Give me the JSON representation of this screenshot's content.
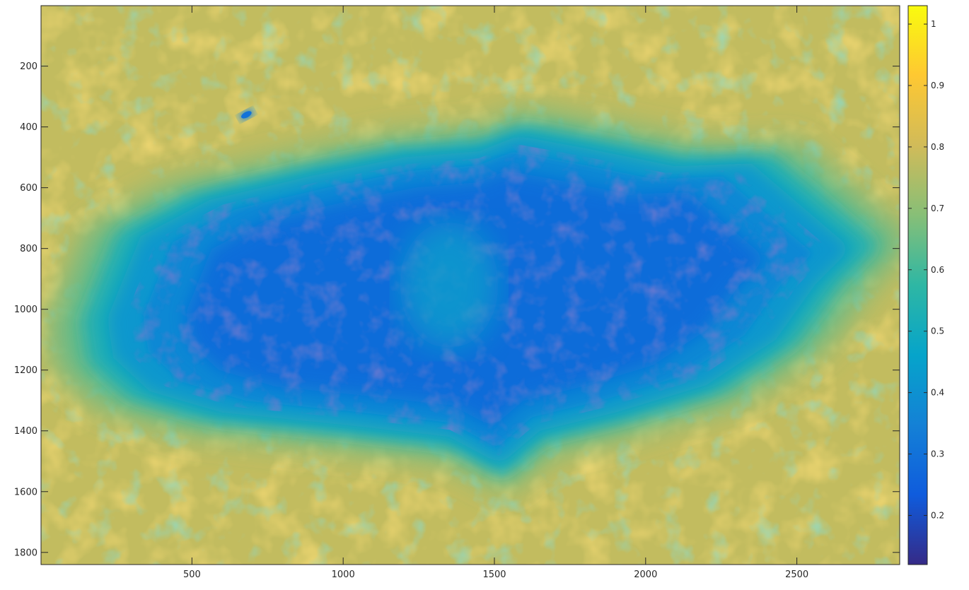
{
  "chart_data": {
    "type": "heatmap",
    "title": "",
    "xlabel": "",
    "ylabel": "",
    "xlim": [
      1,
      2840
    ],
    "ylim": [
      1,
      1840
    ],
    "y_axis_direction": "reverse",
    "x_ticks": [
      500,
      1000,
      1500,
      2000,
      2500
    ],
    "x_tick_labels": [
      "500",
      "1000",
      "1500",
      "2000",
      "2500"
    ],
    "y_ticks": [
      200,
      400,
      600,
      800,
      1000,
      1200,
      1400,
      1600,
      1800
    ],
    "y_tick_labels": [
      "200",
      "400",
      "600",
      "800",
      "1000",
      "1200",
      "1400",
      "1600",
      "1800"
    ],
    "colormap": "parula",
    "color_range": [
      0.12,
      1.03
    ],
    "colorbar_ticks": [
      0.2,
      0.3,
      0.4,
      0.5,
      0.6,
      0.7,
      0.8,
      0.9,
      1
    ],
    "colorbar_tick_labels": [
      "0.2",
      "0.3",
      "0.4",
      "0.5",
      "0.6",
      "0.7",
      "0.8",
      "0.9",
      "1"
    ],
    "background_value": 0.78,
    "region": {
      "description": "central low-value blob",
      "center": [
        1400,
        950
      ],
      "core_value": 0.28,
      "rim_value": 0.42,
      "boundary": [
        [
          220,
          1030
        ],
        [
          330,
          760
        ],
        [
          560,
          640
        ],
        [
          900,
          560
        ],
        [
          1200,
          500
        ],
        [
          1450,
          480
        ],
        [
          1580,
          430
        ],
        [
          1800,
          470
        ],
        [
          2100,
          530
        ],
        [
          2350,
          520
        ],
        [
          2550,
          690
        ],
        [
          2680,
          800
        ],
        [
          2560,
          920
        ],
        [
          2430,
          1100
        ],
        [
          2200,
          1250
        ],
        [
          1900,
          1340
        ],
        [
          1650,
          1400
        ],
        [
          1520,
          1510
        ],
        [
          1350,
          1420
        ],
        [
          1000,
          1380
        ],
        [
          600,
          1340
        ],
        [
          360,
          1270
        ],
        [
          240,
          1160
        ]
      ]
    },
    "features": [
      {
        "name": "small-blue-spot",
        "x": 680,
        "y": 360,
        "value": 0.35
      },
      {
        "name": "center-light-patch",
        "x": 1350,
        "y": 920,
        "value": 0.45
      }
    ]
  },
  "colors": {
    "axis": "#262626",
    "parula_stops": [
      "#352a87",
      "#0f5cdd",
      "#1481d6",
      "#06a4ca",
      "#2eb7a4",
      "#87bf77",
      "#d1bb59",
      "#fec832",
      "#f9fb0e"
    ]
  }
}
